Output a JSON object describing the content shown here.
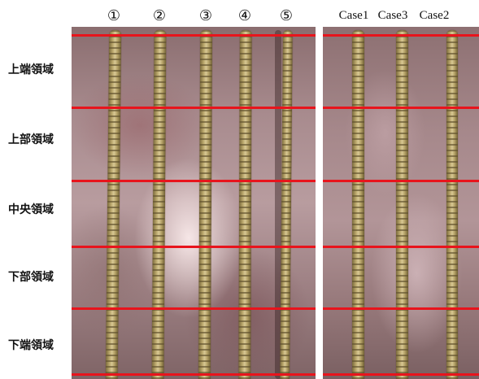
{
  "column_labels": {
    "specimens": [
      "①",
      "②",
      "③",
      "④",
      "⑤"
    ],
    "cases": [
      "Case1",
      "Case3",
      "Case2"
    ]
  },
  "row_labels": [
    "上端領域",
    "上部領域",
    "中央領域",
    "下部領域",
    "下端領域"
  ],
  "colors": {
    "section_line": "#e8141c",
    "background": "#ffffff"
  }
}
